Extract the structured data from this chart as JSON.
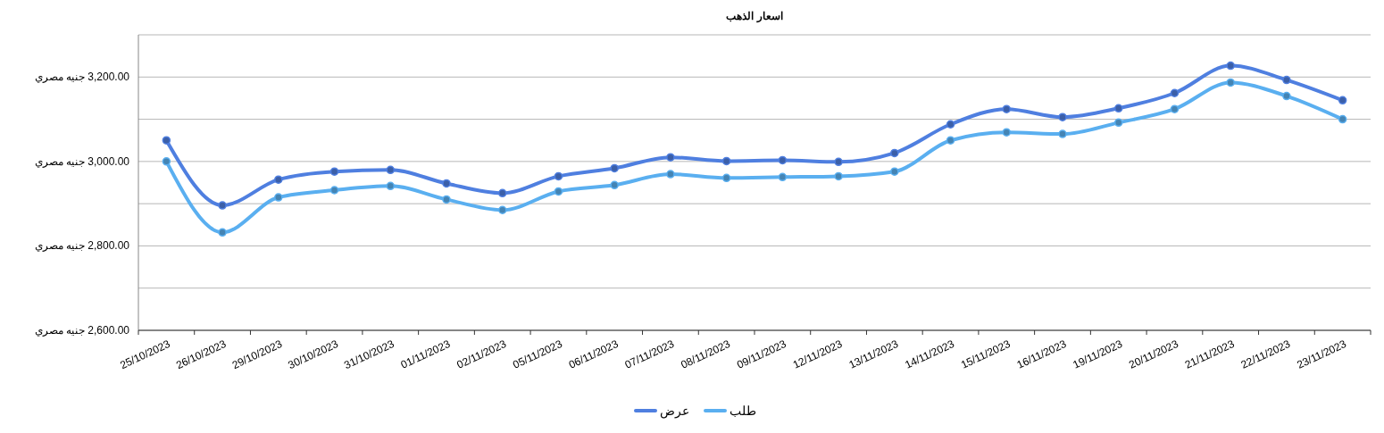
{
  "chart_data": {
    "type": "line",
    "title": "اسعار الذهب",
    "categories": [
      "25/10/2023",
      "26/10/2023",
      "29/10/2023",
      "30/10/2023",
      "31/10/2023",
      "01/11/2023",
      "02/11/2023",
      "05/11/2023",
      "06/11/2023",
      "07/11/2023",
      "08/11/2023",
      "09/11/2023",
      "12/11/2023",
      "13/11/2023",
      "14/11/2023",
      "15/11/2023",
      "16/11/2023",
      "19/11/2023",
      "20/11/2023",
      "21/11/2023",
      "22/11/2023",
      "23/11/2023"
    ],
    "series": [
      {
        "name": "عرض",
        "color": "#4f7fe0",
        "values": [
          3050,
          2896,
          2957,
          2976,
          2980,
          2948,
          2925,
          2965,
          2984,
          3010,
          3001,
          3003,
          2999,
          3020,
          3088,
          3124,
          3105,
          3126,
          3162,
          3227,
          3193,
          3145
        ]
      },
      {
        "name": "طلب",
        "color": "#5aaff0",
        "values": [
          3000,
          2832,
          2915,
          2932,
          2942,
          2910,
          2885,
          2929,
          2944,
          2970,
          2961,
          2963,
          2965,
          2976,
          3050,
          3069,
          3065,
          3092,
          3124,
          3187,
          3155,
          3100
        ]
      }
    ],
    "ylim": [
      2600,
      3300
    ],
    "yticks": [
      {
        "value": 2600,
        "label": "2,600.00 جنيه مصري"
      },
      {
        "value": 2700,
        "label": null
      },
      {
        "value": 2800,
        "label": "2,800.00 جنيه مصري"
      },
      {
        "value": 2900,
        "label": null
      },
      {
        "value": 3000,
        "label": "3,000.00 جنيه مصري"
      },
      {
        "value": 3100,
        "label": null
      },
      {
        "value": 3200,
        "label": "3,200.00 جنيه مصري"
      },
      {
        "value": 3300,
        "label": null
      }
    ],
    "grid": "y",
    "legend": "bottom",
    "marker": "circle",
    "line_style": "solid"
  }
}
